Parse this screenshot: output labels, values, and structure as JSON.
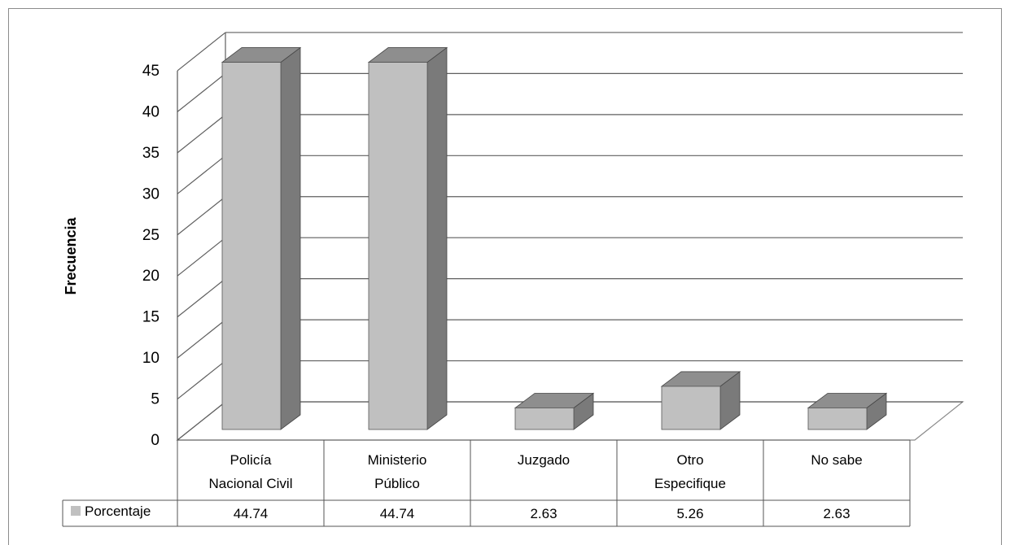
{
  "chart_data": {
    "type": "bar",
    "title": "",
    "xlabel": "",
    "ylabel": "Frecuencia",
    "ylim": [
      0,
      45
    ],
    "yticks": [
      "0",
      "5",
      "10",
      "15",
      "20",
      "25",
      "30",
      "35",
      "40",
      "45"
    ],
    "grid": true,
    "legend": "data-table-left",
    "categories": [
      [
        "Policía",
        "Nacional Civil"
      ],
      [
        "Ministerio",
        "Público"
      ],
      [
        "Juzgado"
      ],
      [
        "Otro",
        "Especifique"
      ],
      [
        "No sabe"
      ]
    ],
    "series": [
      {
        "name": "Porcentaje",
        "values": [
          44.74,
          44.74,
          2.63,
          5.26,
          2.63
        ],
        "labels": [
          "44.74",
          "44.74",
          "2.63",
          "5.26",
          "2.63"
        ]
      }
    ],
    "colors": {
      "bar_front": "#c0c0c0",
      "bar_side": "#7a7a7a",
      "bar_top": "#8e8e8e",
      "grid": "#5f5f5f"
    }
  }
}
